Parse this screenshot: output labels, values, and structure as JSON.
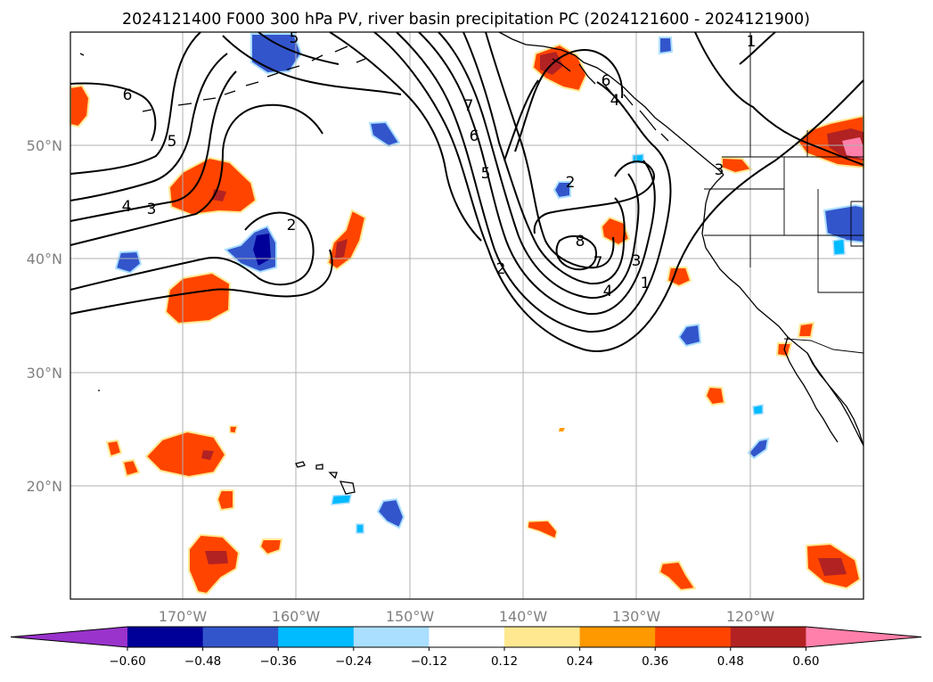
{
  "title": "2024121400 F000 300 hPa PV, river basin precipitation PC (2024121600 - 2024121900)",
  "lat_labels": [
    "50°N",
    "40°N",
    "30°N",
    "20°N"
  ],
  "lon_labels": [
    "170°W",
    "160°W",
    "150°W",
    "140°W",
    "130°W",
    "120°W"
  ],
  "contour_labels": [
    "1",
    "2",
    "3",
    "4",
    "5",
    "6",
    "7",
    "8",
    "2",
    "3",
    "4",
    "5",
    "6",
    "7",
    "1",
    "3",
    "2",
    "4",
    "5",
    "6"
  ],
  "colorbar": {
    "ticks": [
      "−0.60",
      "−0.48",
      "−0.36",
      "−0.24",
      "−0.12",
      "0.12",
      "0.24",
      "0.36",
      "0.48",
      "0.60"
    ],
    "colors": [
      "#9933cc",
      "#000099",
      "#3355cc",
      "#00bbff",
      "#aadfff",
      "#ffffff",
      "#ffe890",
      "#ff9900",
      "#ff4400",
      "#b22222",
      "#ff80aa"
    ]
  },
  "map": {
    "lon_range": [
      "180°W",
      "110°W"
    ],
    "lat_range": [
      "10°N",
      "60°N"
    ],
    "colors": {
      "pv_contours": "#000000",
      "gridlines": "#b0b0b0",
      "tick_labels": "#808080"
    }
  }
}
